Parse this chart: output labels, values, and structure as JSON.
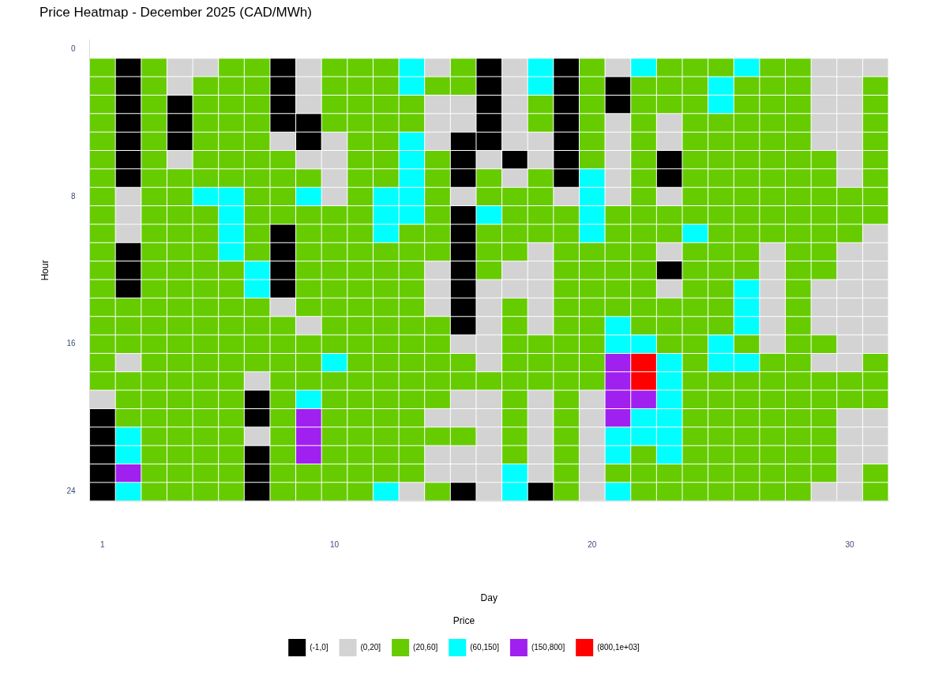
{
  "chart_data": {
    "type": "scatter",
    "title": "Price Heatmap - December 2025 (CAD/MWh)",
    "xlabel": "Day",
    "ylabel": "Hour",
    "legend_title": "Price",
    "legend": "bottom",
    "marker": "square",
    "xlim": [
      0.5,
      31.5
    ],
    "xticks": [
      1,
      10,
      20,
      30
    ],
    "ylim": [
      24.5,
      -0.5
    ],
    "yticks": [
      0,
      8,
      16,
      24
    ],
    "series": [
      {
        "name": "(-1,0]",
        "color": "#000000",
        "x": [
          2,
          8,
          16,
          19,
          2,
          8,
          16,
          19,
          21,
          2,
          4,
          8,
          16,
          19,
          21,
          2,
          4,
          8,
          9,
          16,
          19,
          2,
          4,
          9,
          15,
          16,
          19,
          2,
          15,
          17,
          19,
          23,
          2,
          15,
          19,
          23,
          15,
          8,
          15,
          2,
          8,
          15,
          2,
          8,
          15,
          23,
          2,
          8,
          15,
          15,
          15,
          7,
          1,
          7,
          1,
          1,
          7,
          1,
          7,
          1,
          7,
          15,
          18
        ],
        "values": [
          1,
          1,
          1,
          1,
          2,
          2,
          2,
          2,
          2,
          3,
          3,
          3,
          3,
          3,
          3,
          4,
          4,
          4,
          4,
          4,
          4,
          5,
          5,
          5,
          5,
          5,
          5,
          6,
          6,
          6,
          6,
          6,
          7,
          7,
          7,
          7,
          9,
          10,
          10,
          11,
          11,
          11,
          12,
          12,
          12,
          12,
          13,
          13,
          13,
          14,
          15,
          19,
          20,
          20,
          21,
          22,
          22,
          23,
          23,
          24,
          24,
          24,
          24
        ]
      },
      {
        "name": "(0,20]",
        "color": "#d3d3d3",
        "x": [
          4,
          5,
          9,
          14,
          17,
          21,
          29,
          30,
          31,
          4,
          9,
          17,
          29,
          30,
          9,
          14,
          15,
          17,
          29,
          30,
          14,
          15,
          17,
          21,
          23,
          29,
          30,
          8,
          10,
          14,
          17,
          18,
          21,
          23,
          29,
          30,
          4,
          9,
          10,
          16,
          18,
          21,
          30,
          10,
          17,
          21,
          30,
          2,
          10,
          15,
          19,
          21,
          23,
          2,
          2,
          31,
          18,
          23,
          27,
          30,
          31,
          14,
          17,
          18,
          27,
          30,
          31,
          14,
          16,
          17,
          18,
          23,
          27,
          29,
          30,
          31,
          8,
          14,
          16,
          18,
          27,
          29,
          30,
          31,
          9,
          16,
          18,
          27,
          29,
          30,
          31,
          15,
          16,
          27,
          30,
          31,
          2,
          16,
          29,
          30,
          7,
          1,
          15,
          16,
          18,
          20,
          14,
          15,
          16,
          18,
          20,
          30,
          31,
          7,
          16,
          18,
          20,
          30,
          31,
          14,
          15,
          16,
          18,
          20,
          30,
          31,
          14,
          15,
          16,
          18,
          20,
          30,
          13,
          16,
          20,
          29,
          30
        ],
        "values": [
          1,
          1,
          1,
          1,
          1,
          1,
          1,
          1,
          1,
          2,
          2,
          2,
          2,
          2,
          3,
          3,
          3,
          3,
          3,
          3,
          4,
          4,
          4,
          4,
          4,
          4,
          4,
          5,
          5,
          5,
          5,
          5,
          5,
          5,
          5,
          5,
          6,
          6,
          6,
          6,
          6,
          6,
          6,
          7,
          7,
          7,
          7,
          8,
          8,
          8,
          8,
          8,
          8,
          9,
          10,
          10,
          11,
          11,
          11,
          11,
          11,
          12,
          12,
          12,
          12,
          12,
          12,
          13,
          13,
          13,
          13,
          13,
          13,
          13,
          13,
          13,
          14,
          14,
          14,
          14,
          14,
          14,
          14,
          14,
          15,
          15,
          15,
          15,
          15,
          15,
          15,
          16,
          16,
          16,
          16,
          16,
          17,
          17,
          17,
          17,
          18,
          19,
          19,
          19,
          19,
          19,
          20,
          20,
          20,
          20,
          20,
          20,
          20,
          21,
          21,
          21,
          21,
          21,
          21,
          22,
          22,
          22,
          22,
          22,
          22,
          22,
          23,
          23,
          23,
          23,
          23,
          23,
          24,
          24,
          24,
          24,
          24
        ]
      },
      {
        "name": "(20,60]",
        "color": "#66cc00",
        "x": [
          1,
          3,
          6,
          7,
          10,
          11,
          12,
          15,
          20,
          23,
          24,
          25,
          27,
          28,
          1,
          3,
          5,
          6,
          7,
          10,
          11,
          12,
          14,
          15,
          20,
          22,
          23,
          24,
          26,
          27,
          28,
          31,
          1,
          3,
          5,
          6,
          7,
          10,
          11,
          12,
          13,
          18,
          20,
          22,
          23,
          24,
          26,
          27,
          28,
          31,
          1,
          3,
          5,
          6,
          7,
          10,
          11,
          12,
          13,
          18,
          20,
          22,
          24,
          25,
          26,
          27,
          28,
          31,
          1,
          3,
          5,
          6,
          7,
          11,
          12,
          20,
          22,
          24,
          25,
          26,
          27,
          28,
          31,
          1,
          3,
          5,
          6,
          7,
          8,
          11,
          12,
          14,
          20,
          22,
          24,
          25,
          26,
          27,
          28,
          29,
          31,
          1,
          3,
          4,
          5,
          6,
          7,
          8,
          9,
          11,
          12,
          14,
          16,
          18,
          22,
          24,
          25,
          26,
          27,
          28,
          29,
          31,
          1,
          3,
          4,
          7,
          8,
          11,
          14,
          16,
          17,
          18,
          22,
          24,
          25,
          26,
          27,
          28,
          29,
          30,
          31,
          1,
          3,
          4,
          5,
          7,
          8,
          9,
          10,
          11,
          14,
          17,
          18,
          19,
          21,
          22,
          23,
          24,
          25,
          26,
          27,
          28,
          29,
          30,
          31,
          1,
          3,
          4,
          5,
          7,
          9,
          10,
          11,
          13,
          14,
          16,
          17,
          18,
          19,
          21,
          22,
          23,
          25,
          26,
          27,
          28,
          29,
          30,
          1,
          3,
          4,
          5,
          7,
          9,
          10,
          11,
          12,
          13,
          14,
          16,
          17,
          19,
          20,
          21,
          22,
          24,
          25,
          26,
          28,
          29,
          1,
          3,
          4,
          5,
          6,
          9,
          10,
          11,
          12,
          13,
          16,
          19,
          20,
          21,
          22,
          24,
          25,
          26,
          28,
          29,
          1,
          3,
          4,
          5,
          6,
          9,
          10,
          11,
          12,
          13,
          19,
          20,
          21,
          22,
          24,
          25,
          28,
          1,
          2,
          3,
          4,
          5,
          6,
          7,
          9,
          10,
          11,
          12,
          13,
          17,
          19,
          20,
          21,
          22,
          23,
          24,
          25,
          28,
          1,
          2,
          3,
          4,
          5,
          6,
          7,
          8,
          10,
          11,
          12,
          13,
          14,
          17,
          19,
          20,
          22,
          23,
          24,
          25,
          28,
          1,
          2,
          3,
          4,
          5,
          6,
          7,
          8,
          9,
          10,
          11,
          12,
          13,
          14,
          17,
          18,
          19,
          20,
          23,
          24,
          26,
          28,
          29,
          1,
          3,
          4,
          5,
          6,
          7,
          8,
          9,
          11,
          12,
          13,
          14,
          15,
          17,
          18,
          19,
          20,
          24,
          27,
          28,
          31,
          1,
          2,
          3,
          4,
          5,
          6,
          8,
          9,
          10,
          11,
          12,
          13,
          14,
          15,
          16,
          17,
          18,
          19,
          20,
          24,
          25,
          26,
          27,
          28,
          29,
          30,
          31,
          2,
          3,
          4,
          5,
          6,
          8,
          10,
          11,
          12,
          13,
          14,
          17,
          19,
          24,
          25,
          26,
          27,
          28,
          29,
          30,
          31,
          2,
          3,
          4,
          5,
          6,
          8,
          10,
          11,
          12,
          13,
          17,
          19,
          24,
          25,
          26,
          27,
          28,
          29,
          3,
          4,
          5,
          6,
          8,
          10,
          11,
          12,
          13,
          14,
          15,
          17,
          19,
          24,
          25,
          26,
          27,
          28,
          29,
          3,
          4,
          5,
          6,
          8,
          10,
          11,
          12,
          13,
          17,
          19,
          22,
          24,
          25,
          26,
          27,
          28,
          29,
          3,
          4,
          5,
          6,
          8,
          9,
          10,
          11,
          12,
          13,
          19,
          21,
          22,
          23,
          24,
          25,
          26,
          27,
          28,
          29,
          31,
          3,
          4,
          5,
          6,
          8,
          9,
          10,
          11,
          14,
          19,
          22,
          23,
          24,
          25,
          26,
          27,
          28,
          31
        ],
        "values": [
          1,
          1,
          1,
          1,
          1,
          1,
          1,
          1,
          1,
          1,
          1,
          1,
          1,
          1,
          2,
          2,
          2,
          2,
          2,
          2,
          2,
          2,
          2,
          2,
          2,
          2,
          2,
          2,
          2,
          2,
          2,
          2,
          3,
          3,
          3,
          3,
          3,
          3,
          3,
          3,
          3,
          3,
          3,
          3,
          3,
          3,
          3,
          3,
          3,
          3,
          4,
          4,
          4,
          4,
          4,
          4,
          4,
          4,
          4,
          4,
          4,
          4,
          4,
          4,
          4,
          4,
          4,
          4,
          5,
          5,
          5,
          5,
          5,
          5,
          5,
          5,
          5,
          5,
          5,
          5,
          5,
          5,
          5,
          6,
          6,
          6,
          6,
          6,
          6,
          6,
          6,
          6,
          6,
          6,
          6,
          6,
          6,
          6,
          6,
          6,
          6,
          7,
          7,
          7,
          7,
          7,
          7,
          7,
          7,
          7,
          7,
          7,
          7,
          7,
          7,
          7,
          7,
          7,
          7,
          7,
          7,
          7,
          8,
          8,
          8,
          8,
          8,
          8,
          8,
          8,
          8,
          8,
          8,
          8,
          8,
          8,
          8,
          8,
          8,
          8,
          8,
          9,
          9,
          9,
          9,
          9,
          9,
          9,
          9,
          9,
          9,
          9,
          9,
          9,
          9,
          9,
          9,
          9,
          9,
          9,
          9,
          9,
          9,
          9,
          9,
          10,
          10,
          10,
          10,
          10,
          10,
          10,
          10,
          10,
          10,
          10,
          10,
          10,
          10,
          10,
          10,
          10,
          10,
          10,
          10,
          10,
          10,
          10,
          11,
          11,
          11,
          11,
          11,
          11,
          11,
          11,
          11,
          11,
          11,
          11,
          11,
          11,
          11,
          11,
          11,
          11,
          11,
          11,
          11,
          11,
          12,
          12,
          12,
          12,
          12,
          12,
          12,
          12,
          12,
          12,
          12,
          12,
          12,
          12,
          12,
          12,
          12,
          12,
          12,
          12,
          13,
          13,
          13,
          13,
          13,
          13,
          13,
          13,
          13,
          13,
          13,
          13,
          13,
          13,
          13,
          13,
          13,
          14,
          14,
          14,
          14,
          14,
          14,
          14,
          14,
          14,
          14,
          14,
          14,
          14,
          14,
          14,
          14,
          14,
          14,
          14,
          14,
          14,
          15,
          15,
          15,
          15,
          15,
          15,
          15,
          15,
          15,
          15,
          15,
          15,
          15,
          15,
          15,
          15,
          15,
          15,
          15,
          15,
          15,
          16,
          16,
          16,
          16,
          16,
          16,
          16,
          16,
          16,
          16,
          16,
          16,
          16,
          16,
          16,
          16,
          16,
          16,
          16,
          16,
          16,
          16,
          16,
          17,
          17,
          17,
          17,
          17,
          17,
          17,
          17,
          17,
          17,
          17,
          17,
          17,
          17,
          17,
          17,
          17,
          17,
          17,
          17,
          17,
          18,
          18,
          18,
          18,
          18,
          18,
          18,
          18,
          18,
          18,
          18,
          18,
          18,
          18,
          18,
          18,
          18,
          18,
          18,
          18,
          18,
          18,
          18,
          18,
          18,
          18,
          18,
          19,
          19,
          19,
          19,
          19,
          19,
          19,
          19,
          19,
          19,
          19,
          19,
          19,
          19,
          19,
          19,
          19,
          19,
          19,
          19,
          19,
          20,
          20,
          20,
          20,
          20,
          20,
          20,
          20,
          20,
          20,
          20,
          20,
          20,
          20,
          20,
          20,
          20,
          20,
          21,
          21,
          21,
          21,
          21,
          21,
          21,
          21,
          21,
          21,
          21,
          21,
          21,
          21,
          21,
          21,
          21,
          21,
          21,
          22,
          22,
          22,
          22,
          22,
          22,
          22,
          22,
          22,
          22,
          22,
          22,
          22,
          22,
          22,
          22,
          22,
          22,
          23,
          23,
          23,
          23,
          23,
          23,
          23,
          23,
          23,
          23,
          23,
          23,
          23,
          23,
          23,
          23,
          23,
          23,
          23,
          23,
          23,
          24,
          24,
          24,
          24,
          24,
          24,
          24,
          24,
          24,
          24,
          24,
          24,
          24,
          24,
          24,
          24,
          24,
          24
        ]
      },
      {
        "name": "(60,150]",
        "color": "#00ffff",
        "x": [
          13,
          18,
          22,
          26,
          13,
          18,
          25,
          25,
          13,
          13,
          13,
          20,
          5,
          6,
          9,
          12,
          13,
          20,
          6,
          12,
          13,
          16,
          20,
          6,
          12,
          20,
          24,
          6,
          7,
          7,
          26,
          26,
          21,
          26,
          21,
          22,
          25,
          10,
          23,
          25,
          26,
          23,
          9,
          23,
          22,
          23,
          2,
          21,
          22,
          23,
          2,
          21,
          23,
          17,
          2,
          12,
          17,
          21
        ],
        "values": [
          1,
          1,
          1,
          1,
          2,
          2,
          2,
          3,
          5,
          6,
          7,
          7,
          8,
          8,
          8,
          8,
          8,
          8,
          9,
          9,
          9,
          9,
          9,
          10,
          10,
          10,
          10,
          11,
          12,
          13,
          13,
          14,
          15,
          15,
          16,
          16,
          16,
          17,
          17,
          17,
          17,
          18,
          19,
          19,
          20,
          20,
          21,
          21,
          21,
          21,
          22,
          22,
          22,
          23,
          24,
          24,
          24,
          24
        ]
      },
      {
        "name": "(150,800]",
        "color": "#a020f0",
        "x": [
          21,
          21,
          21,
          22,
          9,
          21,
          9,
          9,
          2
        ],
        "values": [
          17,
          18,
          19,
          19,
          20,
          20,
          21,
          22,
          23
        ]
      },
      {
        "name": "(800,1e+03]",
        "color": "#ff0000",
        "x": [
          22,
          22
        ],
        "values": [
          17,
          18
        ]
      }
    ]
  }
}
